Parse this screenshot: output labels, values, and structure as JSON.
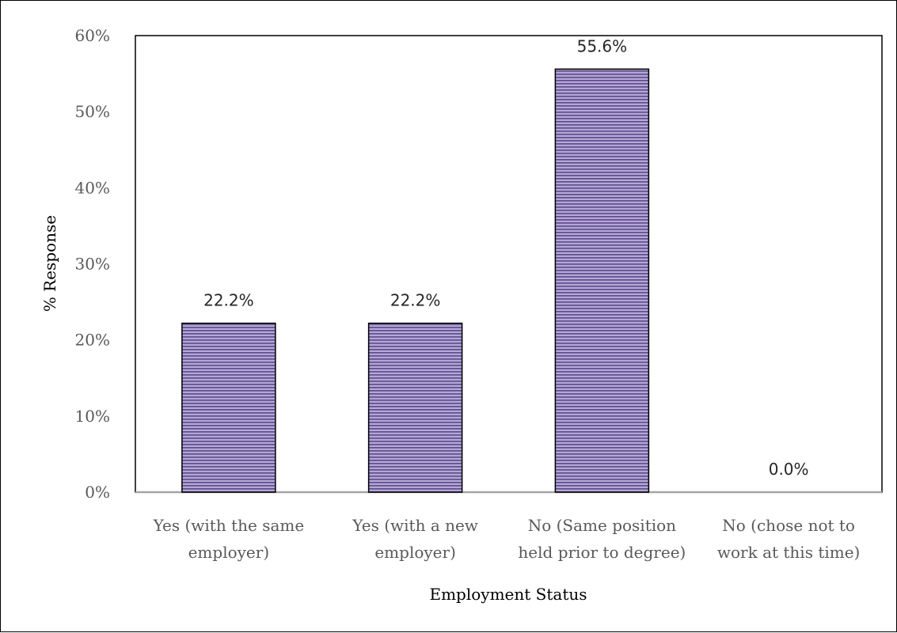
{
  "chart_data": {
    "type": "bar",
    "title": "",
    "xlabel": "Employment Status",
    "ylabel": "% Response",
    "categories": [
      [
        "Yes (with the same",
        "employer)"
      ],
      [
        "Yes (with a new",
        "employer)"
      ],
      [
        "No (Same position",
        "held prior to degree)"
      ],
      [
        "No (chose not to",
        "work at this time)"
      ]
    ],
    "values": [
      22.2,
      22.2,
      55.6,
      0.0
    ],
    "data_labels": [
      "22.2%",
      "22.2%",
      "55.6%",
      "0.0%"
    ],
    "ylim": [
      0,
      60
    ],
    "yticks": [
      0,
      10,
      20,
      30,
      40,
      50,
      60
    ],
    "ytick_labels": [
      "0%",
      "10%",
      "20%",
      "30%",
      "40%",
      "50%",
      "60%"
    ],
    "grid": false,
    "legend": "none",
    "colors": {
      "bar_fill": "#b4a7d6",
      "bar_stripe": "#5b4a8a",
      "bar_border": "#000000",
      "axis": "#a6a6a6",
      "plot_border": "#000000"
    }
  }
}
